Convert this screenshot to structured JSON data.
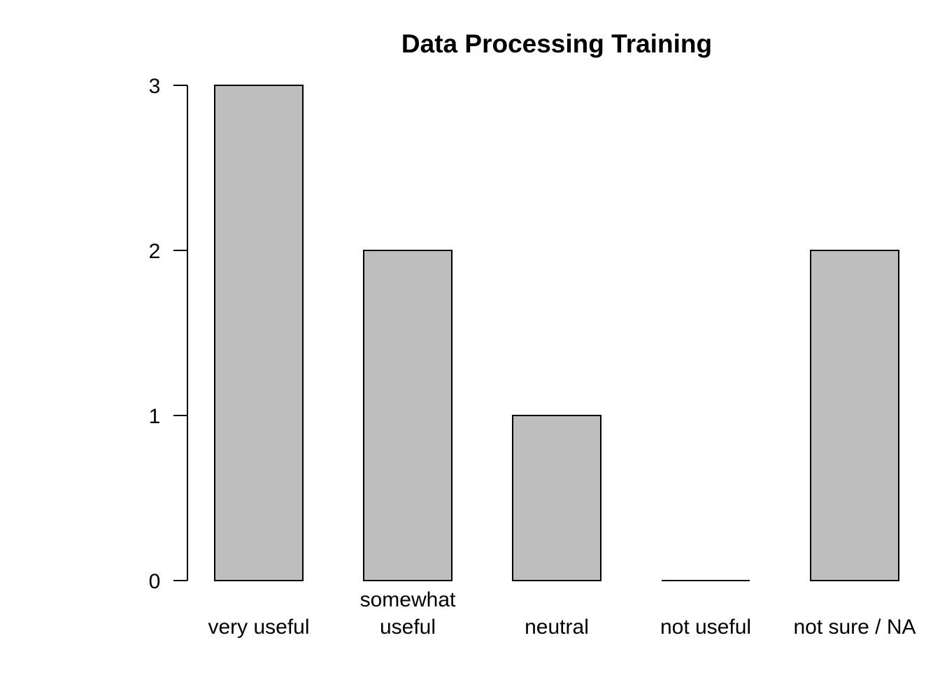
{
  "chart_data": {
    "type": "bar",
    "title": "Data Processing Training",
    "xlabel": "",
    "ylabel": "",
    "categories": [
      "very useful",
      "somewhat useful",
      "neutral",
      "not useful",
      "not sure / NA"
    ],
    "category_lines": [
      [
        "very useful"
      ],
      [
        "somewhat",
        "useful"
      ],
      [
        "neutral"
      ],
      [
        "not useful"
      ],
      [
        "not sure / NA"
      ]
    ],
    "values": [
      3,
      2,
      1,
      0,
      2
    ],
    "ylim": [
      0,
      3
    ],
    "yticks": [
      0,
      1,
      2,
      3
    ],
    "grid": false,
    "legend": "none",
    "bar_color": "#bebebe",
    "bar_outline": "#000000"
  }
}
